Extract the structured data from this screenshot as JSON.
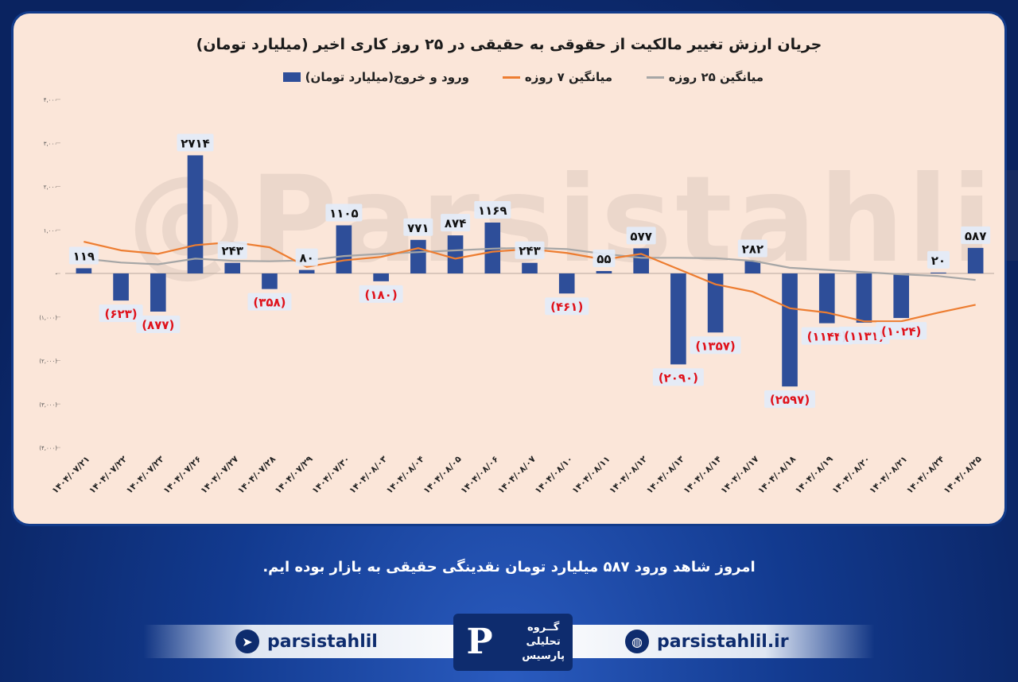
{
  "chart_data": {
    "type": "bar",
    "title": "جریان ارزش تغییر مالکیت از حقوقی به حقیقی در ۲۵ روز کاری اخیر (میلیارد تومان)",
    "legend": [
      {
        "name": "میانگین ۲۵ روزه",
        "color": "#a6a6a6",
        "kind": "line"
      },
      {
        "name": "میانگین ۷ روزه",
        "color": "#ed7d31",
        "kind": "line"
      },
      {
        "name": "ورود و خروج(میلیارد تومان)",
        "color": "#2e4e99",
        "kind": "bar"
      }
    ],
    "ylim": [
      -4000,
      4000
    ],
    "yticks": [
      {
        "value": 4000,
        "label": "۴,۰۰۰"
      },
      {
        "value": 3000,
        "label": "۳,۰۰۰"
      },
      {
        "value": 2000,
        "label": "۲,۰۰۰"
      },
      {
        "value": 1000,
        "label": "۱,۰۰۰"
      },
      {
        "value": 0,
        "label": "-"
      },
      {
        "value": -1000,
        "label": "(۱,۰۰۰)"
      },
      {
        "value": -2000,
        "label": "(۲,۰۰۰)"
      },
      {
        "value": -3000,
        "label": "(۳,۰۰۰)"
      },
      {
        "value": -4000,
        "label": "(۴,۰۰۰)"
      }
    ],
    "categories": [
      "۱۴۰۴/۰۷/۲۱",
      "۱۴۰۴/۰۷/۲۲",
      "۱۴۰۴/۰۷/۲۳",
      "۱۴۰۴/۰۷/۲۶",
      "۱۴۰۴/۰۷/۲۷",
      "۱۴۰۴/۰۷/۲۸",
      "۱۴۰۴/۰۷/۲۹",
      "۱۴۰۴/۰۷/۳۰",
      "۱۴۰۴/۰۸/۰۳",
      "۱۴۰۴/۰۸/۰۴",
      "۱۴۰۴/۰۸/۰۵",
      "۱۴۰۴/۰۸/۰۶",
      "۱۴۰۴/۰۸/۰۷",
      "۱۴۰۴/۰۸/۱۰",
      "۱۴۰۴/۰۸/۱۱",
      "۱۴۰۴/۰۸/۱۲",
      "۱۴۰۴/۰۸/۱۳",
      "۱۴۰۴/۰۸/۱۴",
      "۱۴۰۴/۰۸/۱۷",
      "۱۴۰۴/۰۸/۱۸",
      "۱۴۰۴/۰۸/۱۹",
      "۱۴۰۴/۰۸/۲۰",
      "۱۴۰۴/۰۸/۲۱",
      "۱۴۰۴/۰۸/۲۴",
      "۱۴۰۴/۰۸/۲۵"
    ],
    "values": [
      119,
      -623,
      -877,
      2714,
      243,
      -358,
      80,
      1105,
      -180,
      771,
      874,
      1169,
      243,
      -461,
      55,
      577,
      -2090,
      -1357,
      282,
      -2597,
      -1144,
      -1131,
      -1024,
      20,
      587
    ],
    "data_labels": [
      "۱۱۹",
      "(۶۲۳)",
      "(۸۷۷)",
      "۲۷۱۴",
      "۲۴۳",
      "(۳۵۸)",
      "۸۰",
      "۱۱۰۵",
      "(۱۸۰)",
      "۷۷۱",
      "۸۷۴",
      "۱۱۶۹",
      "۲۴۳",
      "(۴۶۱)",
      "۵۵",
      "۵۷۷",
      "(۲۰۹۰)",
      "(۱۳۵۷)",
      "۲۸۲",
      "(۲۵۹۷)",
      "(۱۱۴۴)",
      "(۱۱۳۱)",
      "(۱۰۲۴)",
      "۲۰",
      "۵۸۷"
    ],
    "series": [
      {
        "name": "میانگین ۷ روزه",
        "color": "#ed7d31",
        "values": [
          730,
          530,
          450,
          650,
          720,
          600,
          150,
          300,
          380,
          580,
          340,
          500,
          560,
          470,
          320,
          450,
          100,
          -250,
          -420,
          -800,
          -900,
          -1100,
          -1100,
          -900,
          -720
        ]
      },
      {
        "name": "میانگین ۲۵ روزه",
        "color": "#a6a6a6",
        "values": [
          340,
          250,
          210,
          340,
          290,
          280,
          300,
          400,
          450,
          490,
          530,
          570,
          590,
          560,
          450,
          360,
          360,
          350,
          290,
          130,
          80,
          30,
          -20,
          -60,
          -150
        ]
      }
    ]
  },
  "watermark": "@Parsistahlil",
  "bottom_text": "امروز شاهد ورود ۵۸۷ میلیارد تومان نقدینگی حقیقی به بازار بوده ایم.",
  "footer": {
    "telegram_handle": "parsistahlil",
    "website": "parsistahlil.ir",
    "logo_line1": "گــروه",
    "logo_line2": "تحلیلی",
    "logo_line3": "پارسیس",
    "logo_mark": "P"
  },
  "colors": {
    "bar": "#2e4e99",
    "positive_label": "#111111",
    "negative_label": "#e0121b",
    "card": "#fbe6d9"
  }
}
